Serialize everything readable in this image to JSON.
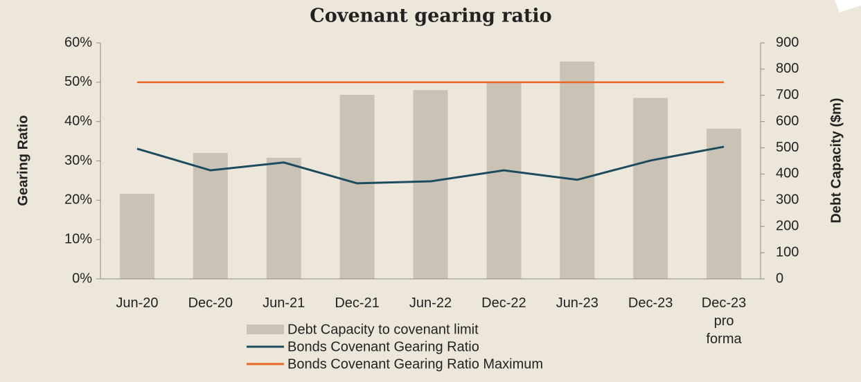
{
  "chart_data": {
    "type": "bar-line",
    "title": "Covenant gearing ratio",
    "ylabel": "Gearing Ratio",
    "y2label": "Debt Capacity ($m)",
    "categories": [
      "Jun-20",
      "Dec-20",
      "Jun-21",
      "Dec-21",
      "Jun-22",
      "Dec-22",
      "Jun-23",
      "Dec-23",
      "Dec-23 pro forma"
    ],
    "series": [
      {
        "name": "Debt Capacity to covenant limit",
        "type": "bar",
        "axis": "y2",
        "color": "#cac2b4",
        "values": [
          325,
          480,
          462,
          702,
          720,
          752,
          829,
          690,
          573
        ]
      },
      {
        "name": "Bonds Covenant Gearing Ratio",
        "type": "line",
        "color": "#1d4b5e",
        "values": [
          33.1,
          27.6,
          29.6,
          24.3,
          24.8,
          27.6,
          25.2,
          30.1,
          33.6
        ]
      },
      {
        "name": "Bonds Covenant Gearing Ratio Maximum",
        "type": "line",
        "color": "#e8661f",
        "values": [
          50,
          50,
          50,
          50,
          50,
          50,
          50,
          50,
          50
        ]
      }
    ],
    "ylim": [
      0,
      60
    ],
    "yticks": [
      {
        "value": 0,
        "label": "0%"
      },
      {
        "value": 10,
        "label": "10%"
      },
      {
        "value": 20,
        "label": "20%"
      },
      {
        "value": 30,
        "label": "30%"
      },
      {
        "value": 40,
        "label": "40%"
      },
      {
        "value": 50,
        "label": "50%"
      },
      {
        "value": 60,
        "label": "60%"
      }
    ],
    "y2lim": [
      0,
      900
    ],
    "y2ticks": [
      0,
      100,
      200,
      300,
      400,
      500,
      600,
      700,
      800,
      900
    ],
    "legend": "bottom"
  }
}
